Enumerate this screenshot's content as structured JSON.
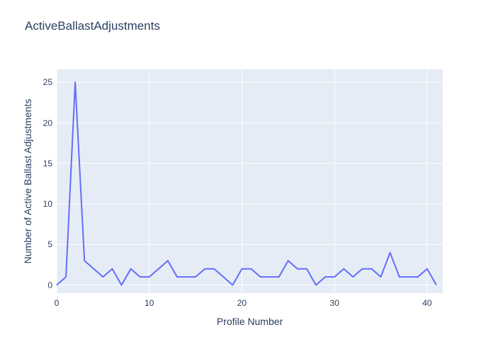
{
  "title": "ActiveBallastAdjustments",
  "colors": {
    "line": "#636efa",
    "plot_bg": "#e5ecf6",
    "grid": "#ffffff",
    "text": "#2a3f5f",
    "page_bg": "#ffffff"
  },
  "chart_data": {
    "type": "line",
    "title": "ActiveBallastAdjustments",
    "xlabel": "Profile Number",
    "ylabel": "Number of Active Ballast Adjustments",
    "x": [
      0,
      1,
      2,
      3,
      4,
      5,
      6,
      7,
      8,
      9,
      10,
      11,
      12,
      13,
      14,
      15,
      16,
      17,
      18,
      19,
      20,
      21,
      22,
      23,
      24,
      25,
      26,
      27,
      28,
      29,
      30,
      31,
      32,
      33,
      34,
      35,
      36,
      37,
      38,
      39,
      40,
      41
    ],
    "y": [
      0,
      1,
      25,
      3,
      2,
      1,
      2,
      0,
      2,
      1,
      1,
      2,
      3,
      1,
      1,
      1,
      2,
      2,
      1,
      0,
      2,
      2,
      1,
      1,
      1,
      3,
      2,
      2,
      0,
      1,
      1,
      2,
      1,
      2,
      2,
      1,
      4,
      1,
      1,
      1,
      2,
      0
    ],
    "x_ticks": [
      0,
      10,
      20,
      30,
      40
    ],
    "y_ticks": [
      0,
      5,
      10,
      15,
      20,
      25
    ],
    "x_range": [
      0,
      41.7
    ],
    "y_range": [
      -1,
      26.6
    ],
    "grid": true,
    "legend": "none"
  }
}
